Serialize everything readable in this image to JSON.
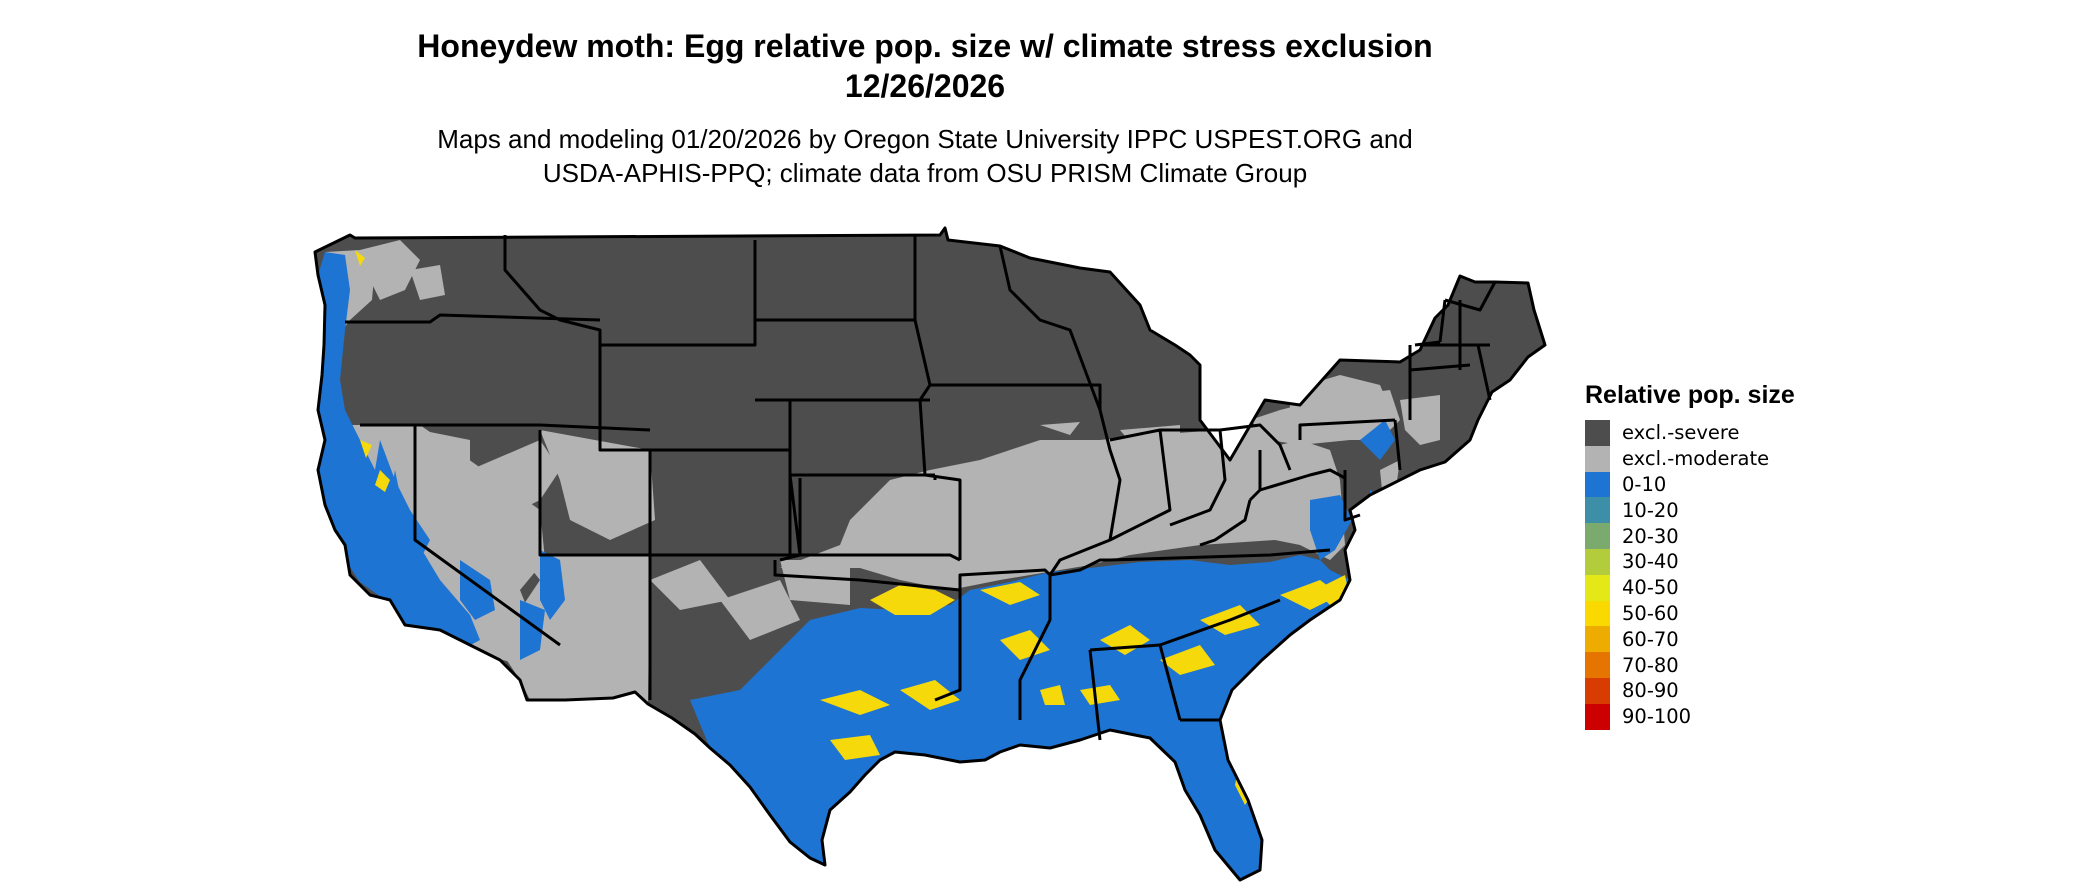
{
  "title": {
    "line1": "Honeydew moth: Egg relative pop. size w/ climate stress exclusion",
    "line2": "12/26/2026"
  },
  "subtitle": {
    "line1": "Maps and modeling 01/20/2026 by Oregon State University IPPC USPEST.ORG and",
    "line2": "USDA-APHIS-PPQ; climate data from OSU PRISM Climate Group"
  },
  "map": {
    "region": "Contiguous United States",
    "colors": {
      "excl_severe": "#4d4d4d",
      "excl_moderate": "#b3b3b3",
      "low": "#1e74d2",
      "mid": "#f5d90a",
      "border": "#000000"
    }
  },
  "legend": {
    "title": "Relative pop. size",
    "items": [
      {
        "label": "excl.-severe",
        "color": "#4d4d4d"
      },
      {
        "label": "excl.-moderate",
        "color": "#b3b3b3"
      },
      {
        "label": "0-10",
        "color": "#1e74d2"
      },
      {
        "label": "10-20",
        "color": "#3d8fa8"
      },
      {
        "label": "20-30",
        "color": "#7aaa6e"
      },
      {
        "label": "30-40",
        "color": "#b2cc3c"
      },
      {
        "label": "40-50",
        "color": "#e3e816"
      },
      {
        "label": "50-60",
        "color": "#f9d900"
      },
      {
        "label": "60-70",
        "color": "#efac00"
      },
      {
        "label": "70-80",
        "color": "#e57400"
      },
      {
        "label": "80-90",
        "color": "#d83c00"
      },
      {
        "label": "90-100",
        "color": "#cc0000"
      }
    ]
  }
}
